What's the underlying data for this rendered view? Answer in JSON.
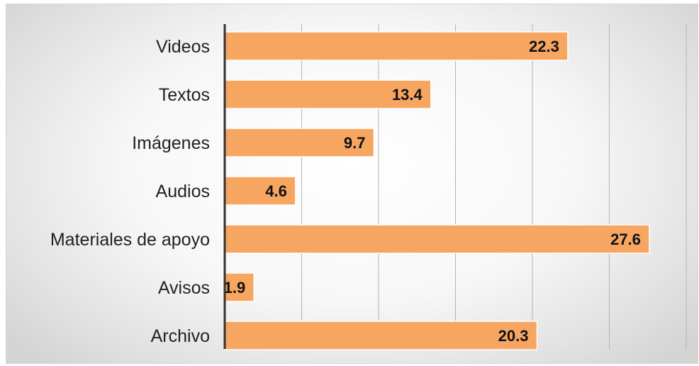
{
  "chart_data": {
    "type": "bar",
    "orientation": "horizontal",
    "categories": [
      "Videos",
      "Textos",
      "Imágenes",
      "Audios",
      "Materiales de apoyo",
      "Avisos",
      "Archivo"
    ],
    "values": [
      22.3,
      13.4,
      9.7,
      4.6,
      27.6,
      1.9,
      20.3
    ],
    "value_labels": [
      "22.3",
      "13.4",
      "9.7",
      "4.6",
      "27.6",
      "1.9",
      "20.3"
    ],
    "xlim": [
      0,
      30
    ],
    "x_gridlines": [
      5,
      10,
      15,
      20,
      25,
      30
    ],
    "grid": true,
    "legend": "none",
    "bar_color": "#f7a662",
    "bar_edge_color": "#ffffff",
    "axis_color": "#333333",
    "grid_color": "#b3b3b3"
  }
}
